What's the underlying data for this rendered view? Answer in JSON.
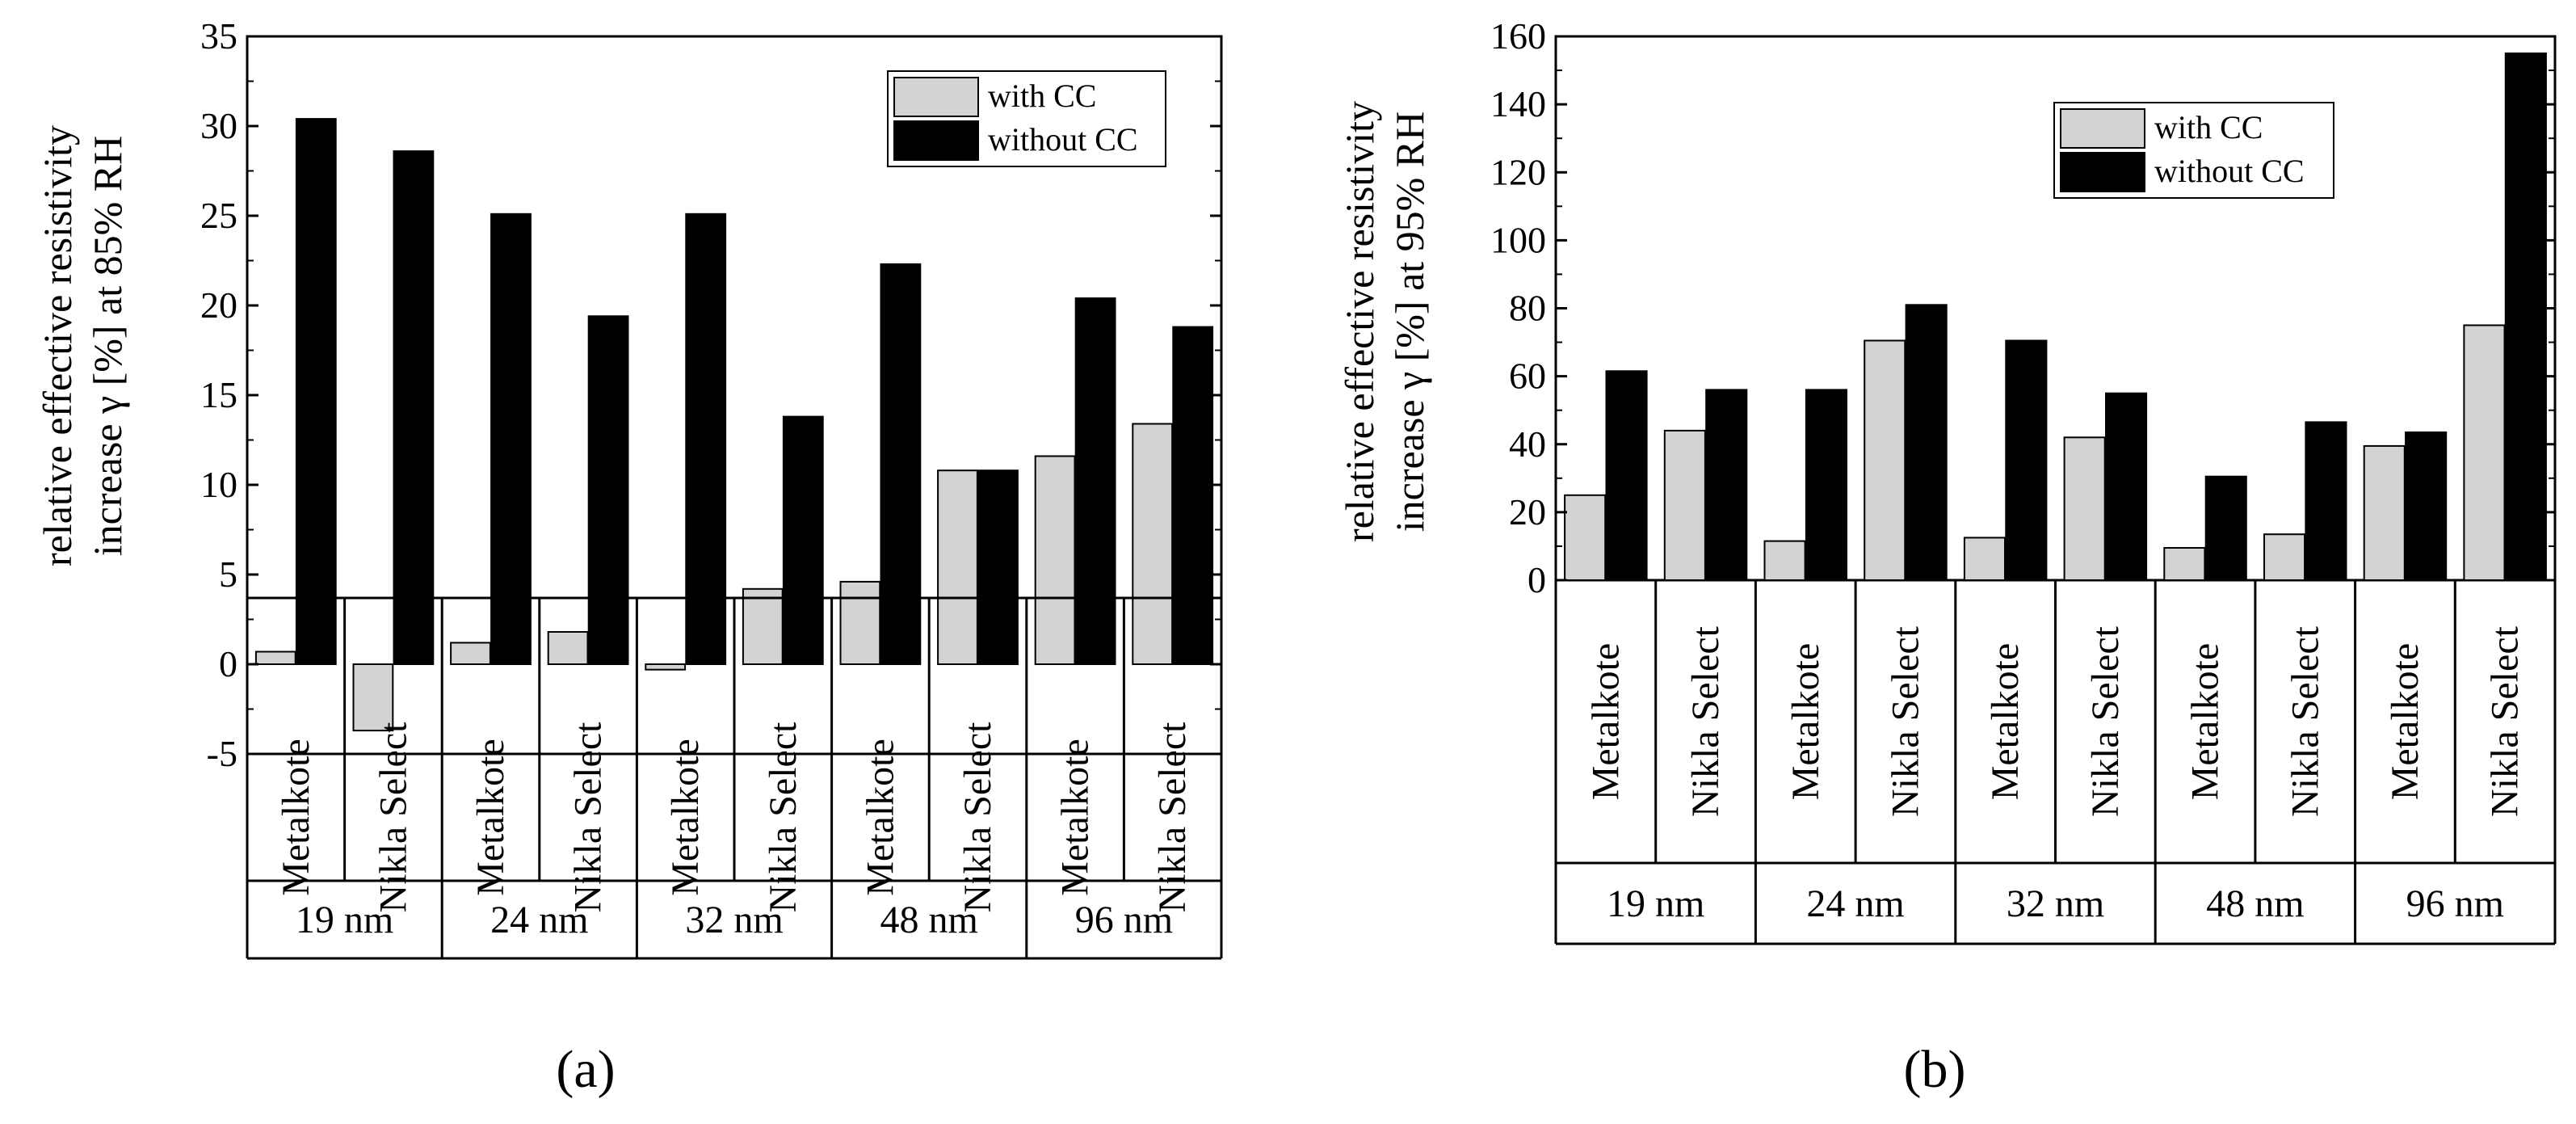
{
  "colors": {
    "with_cc": "#d3d3d3",
    "without_cc": "#000000",
    "axis": "#000000",
    "background": "#ffffff"
  },
  "chart_data": [
    {
      "id": "a",
      "type": "bar",
      "panel_label": "(a)",
      "ylabel_line1": "relative effective resistivity",
      "ylabel_line2": "increase γ [%] at 85% RH",
      "ylim": [
        -5,
        35
      ],
      "yticks": [
        -5,
        0,
        5,
        10,
        15,
        20,
        25,
        30,
        35
      ],
      "ytick_labels": [
        "-5",
        "0",
        "5",
        "10",
        "15",
        "20",
        "25",
        "30",
        "35"
      ],
      "legend": {
        "position": "top-right",
        "entries": [
          "with CC",
          "without CC"
        ]
      },
      "groups": [
        "19 nm",
        "24 nm",
        "32 nm",
        "48 nm",
        "96 nm"
      ],
      "categories": [
        "Metalkote",
        "Nikla Select",
        "Metalkote",
        "Nikla Select",
        "Metalkote",
        "Nikla Select",
        "Metalkote",
        "Nikla Select",
        "Metalkote",
        "Nikla Select"
      ],
      "series": [
        {
          "name": "with CC",
          "values": [
            0.7,
            -3.7,
            1.2,
            1.8,
            -0.3,
            4.2,
            4.6,
            10.8,
            11.6,
            13.4
          ]
        },
        {
          "name": "without CC",
          "values": [
            30.4,
            28.6,
            25.1,
            19.4,
            25.1,
            13.8,
            22.3,
            10.8,
            20.4,
            18.8
          ]
        }
      ]
    },
    {
      "id": "b",
      "type": "bar",
      "panel_label": "(b)",
      "ylabel_line1": "relative effective resistivity",
      "ylabel_line2": "increase γ [%] at 95% RH",
      "ylim": [
        0,
        160
      ],
      "yticks": [
        0,
        20,
        40,
        60,
        80,
        100,
        120,
        140,
        160
      ],
      "ytick_labels": [
        "0",
        "20",
        "40",
        "60",
        "80",
        "100",
        "120",
        "140",
        "160"
      ],
      "legend": {
        "position": "top-right",
        "entries": [
          "with CC",
          "without CC"
        ]
      },
      "groups": [
        "19 nm",
        "24 nm",
        "32 nm",
        "48 nm",
        "96 nm"
      ],
      "categories": [
        "Metalkote",
        "Nikla Select",
        "Metalkote",
        "Nikla Select",
        "Metalkote",
        "Nikla Select",
        "Metalkote",
        "Nikla Select",
        "Metalkote",
        "Nikla Select"
      ],
      "series": [
        {
          "name": "with CC",
          "values": [
            25,
            44,
            11.5,
            70.5,
            12.5,
            42,
            9.5,
            13.5,
            39.5,
            75
          ]
        },
        {
          "name": "without CC",
          "values": [
            61.5,
            56,
            56,
            81,
            70.5,
            55,
            30.5,
            46.5,
            43.5,
            155
          ]
        }
      ]
    }
  ]
}
